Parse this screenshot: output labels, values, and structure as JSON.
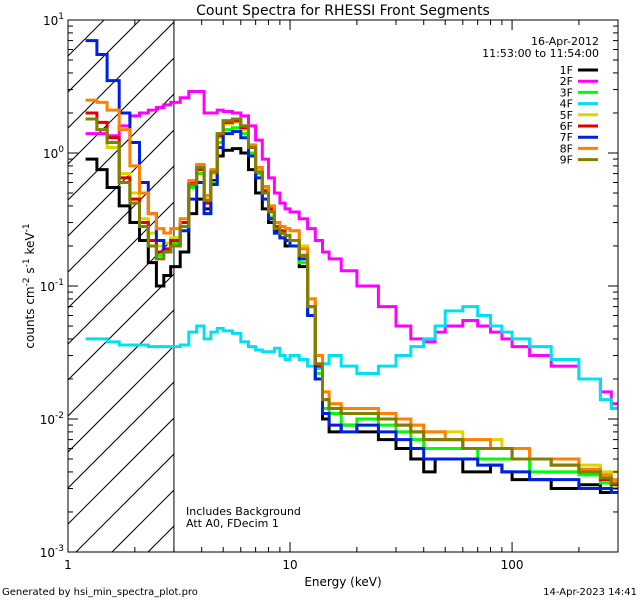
{
  "chart_data": {
    "type": "line",
    "title": "Count Spectra for RHESSI Front Segments",
    "xlabel": "Energy (keV)",
    "ylabel": {
      "prefix": "counts cm",
      "exp1": "-2",
      "mid": " s",
      "exp2": "-1",
      "suffix": " keV",
      "exp3": "-1"
    },
    "xscale": "log",
    "yscale": "log",
    "xlim": [
      1,
      300
    ],
    "ylim": [
      0.001,
      10
    ],
    "x_ticks": [
      {
        "value": 1,
        "label": "1"
      },
      {
        "value": 10,
        "label": "10"
      },
      {
        "value": 100,
        "label": "100"
      }
    ],
    "y_ticks": [
      {
        "value": 0.001,
        "base": "10",
        "exp": "-3"
      },
      {
        "value": 0.01,
        "base": "10",
        "exp": "-2"
      },
      {
        "value": 0.1,
        "base": "10",
        "exp": "-1"
      },
      {
        "value": 1,
        "base": "10",
        "exp": "0"
      },
      {
        "value": 10,
        "base": "10",
        "exp": "1"
      }
    ],
    "date": "16-Apr-2012",
    "time_range": "11:53:00 to 11:54:00",
    "legend_position": "top-right",
    "hatched_region": [
      1,
      3
    ],
    "annotations": [
      "Includes Background",
      "Att A0, FDecim 1"
    ],
    "footer_left": "Generated by hsi_min_spectra_plot.pro",
    "footer_right": "14-Apr-2023 14:41",
    "series": [
      {
        "name": "1F",
        "color": "#000000",
        "x": [
          1.2,
          1.35,
          1.5,
          1.7,
          1.9,
          2.1,
          2.3,
          2.5,
          2.7,
          2.9,
          3.2,
          3.5,
          3.8,
          4.1,
          4.4,
          4.7,
          5.0,
          5.5,
          6.0,
          6.5,
          7.0,
          7.5,
          8.0,
          8.5,
          9.0,
          9.5,
          10,
          11,
          12,
          13,
          14,
          15,
          17,
          20,
          25,
          30,
          35,
          40,
          45,
          50,
          60,
          70,
          80,
          90,
          100,
          120,
          150,
          200,
          250,
          280
        ],
        "y": [
          0.9,
          0.75,
          0.55,
          0.4,
          0.3,
          0.22,
          0.15,
          0.1,
          0.12,
          0.14,
          0.18,
          0.35,
          0.45,
          0.38,
          0.62,
          0.95,
          1.05,
          1.08,
          1.0,
          0.75,
          0.5,
          0.38,
          0.3,
          0.26,
          0.25,
          0.2,
          0.2,
          0.14,
          0.06,
          0.02,
          0.01,
          0.008,
          0.009,
          0.008,
          0.007,
          0.006,
          0.005,
          0.004,
          0.005,
          0.005,
          0.004,
          0.004,
          0.0045,
          0.004,
          0.0035,
          0.0035,
          0.003,
          0.0032,
          0.0028,
          0.003
        ]
      },
      {
        "name": "2F",
        "color": "#ff00ff",
        "x": [
          1.2,
          1.35,
          1.5,
          1.7,
          1.9,
          2.1,
          2.3,
          2.5,
          2.7,
          2.9,
          3.2,
          3.5,
          3.8,
          4.1,
          4.4,
          4.7,
          5.0,
          5.5,
          6.0,
          6.5,
          7.0,
          7.5,
          8.0,
          8.5,
          9.0,
          9.5,
          10,
          11,
          12,
          13,
          14,
          15,
          17,
          20,
          25,
          30,
          35,
          40,
          45,
          50,
          60,
          70,
          80,
          90,
          100,
          120,
          150,
          200,
          250,
          280
        ],
        "y": [
          1.4,
          1.4,
          1.35,
          1.6,
          1.9,
          2.0,
          2.1,
          2.2,
          2.3,
          2.4,
          2.6,
          2.9,
          2.9,
          2.0,
          2.0,
          2.1,
          2.05,
          2.0,
          1.9,
          1.6,
          1.25,
          0.9,
          0.65,
          0.5,
          0.42,
          0.38,
          0.36,
          0.32,
          0.27,
          0.22,
          0.18,
          0.16,
          0.13,
          0.1,
          0.07,
          0.05,
          0.04,
          0.038,
          0.045,
          0.05,
          0.055,
          0.05,
          0.045,
          0.04,
          0.035,
          0.03,
          0.025,
          0.02,
          0.016,
          0.013
        ]
      },
      {
        "name": "3F",
        "color": "#00ff00",
        "x": [
          1.2,
          1.35,
          1.5,
          1.7,
          1.9,
          2.1,
          2.3,
          2.5,
          2.7,
          2.9,
          3.2,
          3.5,
          3.8,
          4.1,
          4.4,
          4.7,
          5.0,
          5.5,
          6.0,
          6.5,
          7.0,
          7.5,
          8.0,
          8.5,
          9.0,
          9.5,
          10,
          11,
          12,
          13,
          14,
          15,
          17,
          20,
          25,
          30,
          35,
          40,
          45,
          50,
          60,
          70,
          80,
          90,
          100,
          120,
          150,
          200,
          250,
          280
        ],
        "y": [
          1.8,
          1.5,
          1.2,
          0.6,
          0.45,
          0.3,
          0.2,
          0.17,
          0.18,
          0.21,
          0.28,
          0.55,
          0.7,
          0.35,
          0.6,
          1.2,
          1.5,
          1.55,
          1.4,
          1.0,
          0.7,
          0.5,
          0.33,
          0.25,
          0.23,
          0.22,
          0.2,
          0.15,
          0.06,
          0.022,
          0.012,
          0.011,
          0.009,
          0.01,
          0.009,
          0.008,
          0.007,
          0.006,
          0.006,
          0.006,
          0.006,
          0.005,
          0.005,
          0.005,
          0.005,
          0.004,
          0.004,
          0.0038,
          0.0033,
          0.003
        ]
      },
      {
        "name": "4F",
        "color": "#00e0f0",
        "x": [
          1.2,
          1.35,
          1.5,
          1.7,
          1.9,
          2.1,
          2.3,
          2.5,
          2.7,
          2.9,
          3.2,
          3.5,
          3.8,
          4.1,
          4.4,
          4.7,
          5.0,
          5.5,
          6.0,
          6.5,
          7.0,
          7.5,
          8.0,
          8.5,
          9.0,
          9.5,
          10,
          11,
          12,
          13,
          14,
          15,
          17,
          20,
          25,
          30,
          35,
          40,
          45,
          50,
          60,
          70,
          80,
          90,
          100,
          120,
          150,
          200,
          250,
          280
        ],
        "y": [
          0.04,
          0.04,
          0.038,
          0.036,
          0.036,
          0.036,
          0.035,
          0.035,
          0.035,
          0.035,
          0.036,
          0.045,
          0.05,
          0.04,
          0.045,
          0.048,
          0.046,
          0.044,
          0.038,
          0.035,
          0.033,
          0.032,
          0.032,
          0.034,
          0.03,
          0.028,
          0.03,
          0.028,
          0.025,
          0.024,
          0.026,
          0.03,
          0.025,
          0.022,
          0.025,
          0.03,
          0.035,
          0.04,
          0.05,
          0.065,
          0.07,
          0.06,
          0.05,
          0.045,
          0.04,
          0.035,
          0.028,
          0.02,
          0.014,
          0.012
        ]
      },
      {
        "name": "5F",
        "color": "#d8d800",
        "x": [
          1.2,
          1.35,
          1.5,
          1.7,
          1.9,
          2.1,
          2.3,
          2.5,
          2.7,
          2.9,
          3.2,
          3.5,
          3.8,
          4.1,
          4.4,
          4.7,
          5.0,
          5.5,
          6.0,
          6.5,
          7.0,
          7.5,
          8.0,
          8.5,
          9.0,
          9.5,
          10,
          11,
          12,
          13,
          14,
          15,
          17,
          20,
          25,
          30,
          35,
          40,
          45,
          50,
          60,
          70,
          80,
          90,
          100,
          120,
          150,
          200,
          250,
          280
        ],
        "y": [
          1.8,
          1.5,
          1.1,
          0.7,
          0.5,
          0.32,
          0.25,
          0.2,
          0.21,
          0.23,
          0.3,
          0.6,
          0.8,
          0.45,
          0.7,
          1.3,
          1.65,
          1.7,
          1.5,
          1.1,
          0.75,
          0.55,
          0.4,
          0.3,
          0.28,
          0.27,
          0.26,
          0.2,
          0.08,
          0.03,
          0.016,
          0.013,
          0.012,
          0.012,
          0.011,
          0.01,
          0.009,
          0.008,
          0.008,
          0.008,
          0.007,
          0.007,
          0.007,
          0.006,
          0.006,
          0.005,
          0.005,
          0.0045,
          0.004,
          0.004
        ]
      },
      {
        "name": "6F",
        "color": "#e00000",
        "x": [
          1.2,
          1.35,
          1.5,
          1.7,
          1.9,
          2.1,
          2.3,
          2.5,
          2.7,
          2.9,
          3.2,
          3.5,
          3.8,
          4.1,
          4.4,
          4.7,
          5.0,
          5.5,
          6.0,
          6.5,
          7.0,
          7.5,
          8.0,
          8.5,
          9.0,
          9.5,
          10,
          11,
          12,
          13,
          14,
          15,
          17,
          20,
          25,
          30,
          35,
          40,
          45,
          50,
          60,
          70,
          80,
          90,
          100,
          120,
          150,
          200,
          250,
          280
        ],
        "y": [
          2.0,
          1.7,
          1.3,
          0.65,
          0.45,
          0.3,
          0.22,
          0.18,
          0.19,
          0.22,
          0.3,
          0.6,
          0.75,
          0.42,
          0.72,
          1.35,
          1.7,
          1.75,
          1.55,
          1.1,
          0.72,
          0.52,
          0.38,
          0.28,
          0.26,
          0.24,
          0.22,
          0.17,
          0.07,
          0.025,
          0.014,
          0.012,
          0.011,
          0.011,
          0.01,
          0.009,
          0.008,
          0.007,
          0.007,
          0.007,
          0.006,
          0.006,
          0.006,
          0.006,
          0.005,
          0.005,
          0.0045,
          0.004,
          0.0035,
          0.0032
        ]
      },
      {
        "name": "7F",
        "color": "#0020e0",
        "x": [
          1.2,
          1.35,
          1.5,
          1.7,
          1.9,
          2.1,
          2.3,
          2.5,
          2.7,
          2.9,
          3.2,
          3.5,
          3.8,
          4.1,
          4.4,
          4.7,
          5.0,
          5.5,
          6.0,
          6.5,
          7.0,
          7.5,
          8.0,
          8.5,
          9.0,
          9.5,
          10,
          11,
          12,
          13,
          14,
          15,
          17,
          20,
          25,
          30,
          35,
          40,
          45,
          50,
          60,
          70,
          80,
          90,
          100,
          120,
          150,
          200,
          250,
          280
        ],
        "y": [
          7.0,
          5.5,
          3.5,
          2.0,
          1.2,
          0.6,
          0.35,
          0.22,
          0.18,
          0.2,
          0.26,
          0.45,
          0.6,
          0.35,
          0.58,
          1.1,
          1.4,
          1.45,
          1.3,
          0.95,
          0.65,
          0.45,
          0.32,
          0.25,
          0.23,
          0.22,
          0.2,
          0.16,
          0.06,
          0.02,
          0.011,
          0.009,
          0.008,
          0.009,
          0.008,
          0.007,
          0.006,
          0.005,
          0.005,
          0.005,
          0.005,
          0.0045,
          0.0045,
          0.004,
          0.004,
          0.0035,
          0.0035,
          0.003,
          0.003,
          0.0028
        ]
      },
      {
        "name": "8F",
        "color": "#ff8000",
        "x": [
          1.2,
          1.35,
          1.5,
          1.7,
          1.9,
          2.1,
          2.3,
          2.5,
          2.7,
          2.9,
          3.2,
          3.5,
          3.8,
          4.1,
          4.4,
          4.7,
          5.0,
          5.5,
          6.0,
          6.5,
          7.0,
          7.5,
          8.0,
          8.5,
          9.0,
          9.5,
          10,
          11,
          12,
          13,
          14,
          15,
          17,
          20,
          25,
          30,
          35,
          40,
          45,
          50,
          60,
          70,
          80,
          90,
          100,
          120,
          150,
          200,
          250,
          280
        ],
        "y": [
          2.5,
          2.4,
          2.1,
          1.5,
          0.8,
          0.5,
          0.35,
          0.27,
          0.25,
          0.27,
          0.32,
          0.62,
          0.82,
          0.48,
          0.75,
          1.4,
          1.75,
          1.8,
          1.6,
          1.15,
          0.78,
          0.56,
          0.4,
          0.3,
          0.28,
          0.27,
          0.26,
          0.19,
          0.08,
          0.03,
          0.016,
          0.013,
          0.012,
          0.012,
          0.011,
          0.01,
          0.009,
          0.008,
          0.008,
          0.007,
          0.007,
          0.007,
          0.006,
          0.006,
          0.006,
          0.005,
          0.005,
          0.0042,
          0.0038,
          0.0035
        ]
      },
      {
        "name": "9F",
        "color": "#808000",
        "x": [
          1.2,
          1.35,
          1.5,
          1.7,
          1.9,
          2.1,
          2.3,
          2.5,
          2.7,
          2.9,
          3.2,
          3.5,
          3.8,
          4.1,
          4.4,
          4.7,
          5.0,
          5.5,
          6.0,
          6.5,
          7.0,
          7.5,
          8.0,
          8.5,
          9.0,
          9.5,
          10,
          11,
          12,
          13,
          14,
          15,
          17,
          20,
          25,
          30,
          35,
          40,
          45,
          50,
          60,
          70,
          80,
          90,
          100,
          120,
          150,
          200,
          250,
          280
        ],
        "y": [
          1.8,
          1.5,
          1.2,
          0.6,
          0.42,
          0.28,
          0.2,
          0.16,
          0.18,
          0.2,
          0.28,
          0.58,
          0.78,
          0.44,
          0.72,
          1.4,
          1.75,
          1.8,
          1.6,
          1.1,
          0.72,
          0.5,
          0.36,
          0.27,
          0.25,
          0.24,
          0.22,
          0.17,
          0.07,
          0.026,
          0.014,
          0.012,
          0.011,
          0.011,
          0.01,
          0.009,
          0.008,
          0.007,
          0.007,
          0.007,
          0.006,
          0.006,
          0.006,
          0.006,
          0.005,
          0.005,
          0.0045,
          0.004,
          0.0036,
          0.0033
        ]
      }
    ]
  }
}
